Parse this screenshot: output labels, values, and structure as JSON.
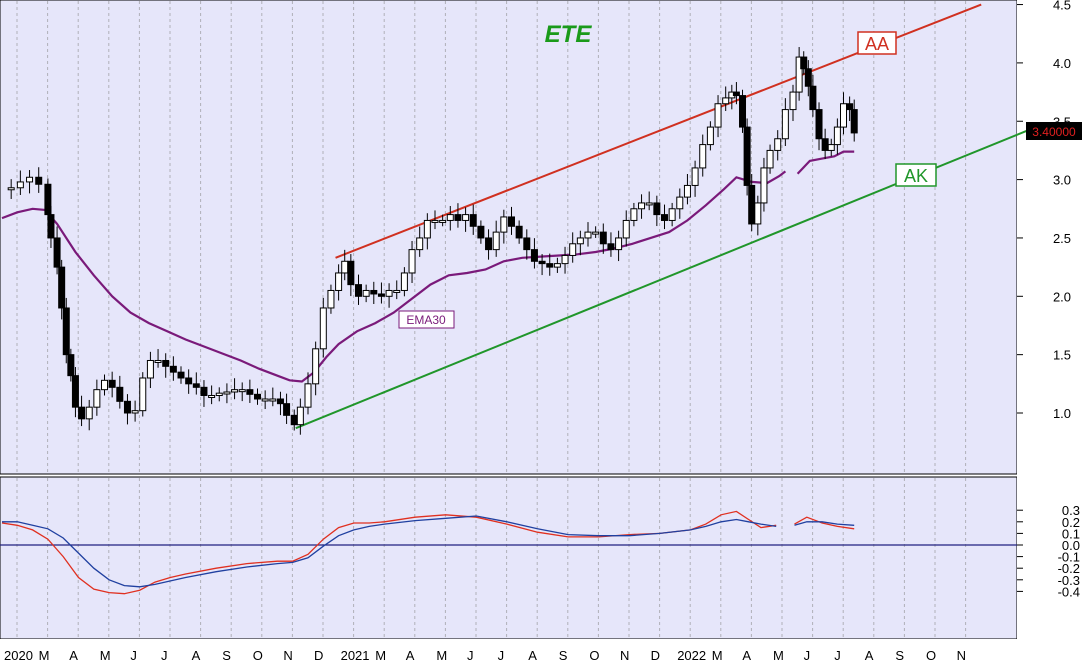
{
  "colors": {
    "panel_bg": "#e6e6fa",
    "grid": "#b0b0b8",
    "ema": "#7a1a7a",
    "upper_channel": "#d03020",
    "lower_channel": "#20962a",
    "macd_red": "#e03020",
    "macd_blue": "#2040a0",
    "zero_line": "#202080",
    "candle": "#000000",
    "price_tag_bg": "#000000",
    "price_tag_fg": "#e02020",
    "title": "#1a9a1a"
  },
  "chart_data": [
    {
      "type": "candlestick",
      "title": "ETE",
      "y_ticks": [
        "1.0",
        "1.5",
        "2.0",
        "2.5",
        "3.0",
        "3.5",
        "4.0",
        "4.5"
      ],
      "ylim": [
        0.5,
        4.5
      ],
      "x_ticks": [
        "2020",
        "M",
        "A",
        "M",
        "J",
        "J",
        "A",
        "S",
        "O",
        "N",
        "D",
        "2021",
        "M",
        "A",
        "M",
        "J",
        "J",
        "A",
        "S",
        "O",
        "N",
        "D",
        "2022",
        "M",
        "A",
        "M",
        "J",
        "J",
        "A",
        "S",
        "O",
        "N"
      ],
      "last_price_label": "3.40000",
      "last_price": 3.4,
      "annotations": [
        {
          "text": "AA",
          "color": "upper_channel"
        },
        {
          "text": "AK",
          "color": "lower_channel"
        },
        {
          "text": "EMA30",
          "color": "ema"
        }
      ],
      "trendlines": [
        {
          "name": "AA",
          "from": [
            10.9,
            2.33
          ],
          "to": [
            32.0,
            4.5
          ]
        },
        {
          "name": "AK",
          "from": [
            9.6,
            0.87
          ],
          "to": [
            33.6,
            3.43
          ]
        }
      ],
      "price_series": [
        [
          0.0,
          2.92
        ],
        [
          0.3,
          2.93
        ],
        [
          0.6,
          2.98
        ],
        [
          0.9,
          3.02
        ],
        [
          1.2,
          2.96
        ],
        [
          1.5,
          2.7
        ],
        [
          1.6,
          2.5
        ],
        [
          1.8,
          2.25
        ],
        [
          1.95,
          1.9
        ],
        [
          2.1,
          1.5
        ],
        [
          2.25,
          1.32
        ],
        [
          2.4,
          1.05
        ],
        [
          2.6,
          0.95
        ],
        [
          2.85,
          1.05
        ],
        [
          3.1,
          1.2
        ],
        [
          3.35,
          1.28
        ],
        [
          3.6,
          1.22
        ],
        [
          3.85,
          1.1
        ],
        [
          4.1,
          1.0
        ],
        [
          4.35,
          1.02
        ],
        [
          4.6,
          1.3
        ],
        [
          4.85,
          1.45
        ],
        [
          5.1,
          1.45
        ],
        [
          5.35,
          1.4
        ],
        [
          5.6,
          1.35
        ],
        [
          5.85,
          1.3
        ],
        [
          6.1,
          1.25
        ],
        [
          6.35,
          1.22
        ],
        [
          6.6,
          1.15
        ],
        [
          6.85,
          1.15
        ],
        [
          7.1,
          1.17
        ],
        [
          7.35,
          1.18
        ],
        [
          7.6,
          1.2
        ],
        [
          7.85,
          1.2
        ],
        [
          8.1,
          1.16
        ],
        [
          8.35,
          1.12
        ],
        [
          8.6,
          1.12
        ],
        [
          8.85,
          1.12
        ],
        [
          9.1,
          1.08
        ],
        [
          9.3,
          0.98
        ],
        [
          9.55,
          0.9
        ],
        [
          9.75,
          1.05
        ],
        [
          10.0,
          1.25
        ],
        [
          10.25,
          1.55
        ],
        [
          10.5,
          1.9
        ],
        [
          10.75,
          2.05
        ],
        [
          11.0,
          2.2
        ],
        [
          11.2,
          2.3
        ],
        [
          11.4,
          2.1
        ],
        [
          11.65,
          2.0
        ],
        [
          11.9,
          2.05
        ],
        [
          12.15,
          2.02
        ],
        [
          12.4,
          2.0
        ],
        [
          12.65,
          2.05
        ],
        [
          12.9,
          2.05
        ],
        [
          13.15,
          2.2
        ],
        [
          13.4,
          2.4
        ],
        [
          13.65,
          2.5
        ],
        [
          13.9,
          2.65
        ],
        [
          14.15,
          2.65
        ],
        [
          14.4,
          2.65
        ],
        [
          14.65,
          2.7
        ],
        [
          14.9,
          2.65
        ],
        [
          15.15,
          2.7
        ],
        [
          15.4,
          2.6
        ],
        [
          15.65,
          2.5
        ],
        [
          15.9,
          2.4
        ],
        [
          16.15,
          2.55
        ],
        [
          16.4,
          2.68
        ],
        [
          16.65,
          2.6
        ],
        [
          16.9,
          2.5
        ],
        [
          17.15,
          2.4
        ],
        [
          17.4,
          2.3
        ],
        [
          17.65,
          2.28
        ],
        [
          17.9,
          2.25
        ],
        [
          18.15,
          2.28
        ],
        [
          18.4,
          2.35
        ],
        [
          18.65,
          2.45
        ],
        [
          18.9,
          2.5
        ],
        [
          19.15,
          2.55
        ],
        [
          19.4,
          2.55
        ],
        [
          19.65,
          2.45
        ],
        [
          19.9,
          2.4
        ],
        [
          20.15,
          2.5
        ],
        [
          20.4,
          2.65
        ],
        [
          20.65,
          2.75
        ],
        [
          20.9,
          2.8
        ],
        [
          21.15,
          2.8
        ],
        [
          21.4,
          2.7
        ],
        [
          21.65,
          2.65
        ],
        [
          21.9,
          2.75
        ],
        [
          22.15,
          2.85
        ],
        [
          22.4,
          2.95
        ],
        [
          22.65,
          3.1
        ],
        [
          22.9,
          3.3
        ],
        [
          23.15,
          3.45
        ],
        [
          23.4,
          3.65
        ],
        [
          23.65,
          3.7
        ],
        [
          23.85,
          3.75
        ],
        [
          24.0,
          3.72
        ],
        [
          24.2,
          3.45
        ],
        [
          24.35,
          2.95
        ],
        [
          24.5,
          2.62
        ],
        [
          24.7,
          2.8
        ],
        [
          24.9,
          3.1
        ],
        [
          25.1,
          3.25
        ],
        [
          25.35,
          3.35
        ],
        [
          25.6,
          3.6
        ],
        [
          25.85,
          3.75
        ],
        [
          26.05,
          4.05
        ],
        [
          26.2,
          3.95
        ],
        [
          26.35,
          3.8
        ],
        [
          26.5,
          3.6
        ],
        [
          26.7,
          3.35
        ],
        [
          26.9,
          3.25
        ],
        [
          27.1,
          3.3
        ],
        [
          27.3,
          3.45
        ],
        [
          27.5,
          3.65
        ],
        [
          27.7,
          3.6
        ],
        [
          27.85,
          3.4
        ]
      ],
      "ema30": [
        [
          0.0,
          2.67
        ],
        [
          0.5,
          2.72
        ],
        [
          1.0,
          2.75
        ],
        [
          1.4,
          2.74
        ],
        [
          1.8,
          2.62
        ],
        [
          2.4,
          2.38
        ],
        [
          3.0,
          2.18
        ],
        [
          3.6,
          2.0
        ],
        [
          4.2,
          1.86
        ],
        [
          4.8,
          1.77
        ],
        [
          5.4,
          1.7
        ],
        [
          6.0,
          1.63
        ],
        [
          6.6,
          1.57
        ],
        [
          7.2,
          1.51
        ],
        [
          7.8,
          1.45
        ],
        [
          8.4,
          1.38
        ],
        [
          9.0,
          1.32
        ],
        [
          9.4,
          1.28
        ],
        [
          9.8,
          1.27
        ],
        [
          10.2,
          1.35
        ],
        [
          10.6,
          1.48
        ],
        [
          11.0,
          1.59
        ],
        [
          11.6,
          1.7
        ],
        [
          12.2,
          1.77
        ],
        [
          12.8,
          1.86
        ],
        [
          13.4,
          1.98
        ],
        [
          14.0,
          2.1
        ],
        [
          14.6,
          2.18
        ],
        [
          15.2,
          2.2
        ],
        [
          15.8,
          2.23
        ],
        [
          16.4,
          2.3
        ],
        [
          17.0,
          2.33
        ],
        [
          17.6,
          2.34
        ],
        [
          18.2,
          2.35
        ],
        [
          18.8,
          2.36
        ],
        [
          19.4,
          2.38
        ],
        [
          20.0,
          2.41
        ],
        [
          20.6,
          2.45
        ],
        [
          21.2,
          2.5
        ],
        [
          21.8,
          2.55
        ],
        [
          22.4,
          2.65
        ],
        [
          23.0,
          2.78
        ],
        [
          23.6,
          2.92
        ],
        [
          24.0,
          3.02
        ],
        [
          24.5,
          2.98
        ],
        [
          25.0,
          2.97
        ],
        [
          25.4,
          3.03
        ],
        [
          25.6,
          3.07
        ]
      ],
      "ema30_tail": [
        [
          26.0,
          3.05
        ],
        [
          26.4,
          3.16
        ],
        [
          26.8,
          3.18
        ],
        [
          27.2,
          3.2
        ],
        [
          27.5,
          3.24
        ],
        [
          27.85,
          3.24
        ]
      ],
      "volume_note": null
    },
    {
      "type": "line",
      "y_ticks": [
        "0.3",
        "0.2",
        "0.1",
        "0.0",
        "-0.1",
        "-0.2",
        "-0.3",
        "-0.4"
      ],
      "ylim": [
        -0.45,
        0.33
      ],
      "series": [
        {
          "color": "macd_red",
          "points": [
            [
              0.0,
              0.19
            ],
            [
              0.5,
              0.17
            ],
            [
              1.0,
              0.13
            ],
            [
              1.5,
              0.05
            ],
            [
              2.0,
              -0.1
            ],
            [
              2.5,
              -0.28
            ],
            [
              3.0,
              -0.38
            ],
            [
              3.5,
              -0.41
            ],
            [
              4.0,
              -0.42
            ],
            [
              4.5,
              -0.39
            ],
            [
              5.0,
              -0.32
            ],
            [
              5.5,
              -0.28
            ],
            [
              6.0,
              -0.25
            ],
            [
              7.0,
              -0.2
            ],
            [
              8.0,
              -0.16
            ],
            [
              9.0,
              -0.14
            ],
            [
              9.5,
              -0.14
            ],
            [
              10.0,
              -0.08
            ],
            [
              10.5,
              0.05
            ],
            [
              11.0,
              0.15
            ],
            [
              11.5,
              0.19
            ],
            [
              12.0,
              0.19
            ],
            [
              12.5,
              0.2
            ],
            [
              13.5,
              0.24
            ],
            [
              14.5,
              0.26
            ],
            [
              15.5,
              0.24
            ],
            [
              16.5,
              0.18
            ],
            [
              17.5,
              0.11
            ],
            [
              18.5,
              0.07
            ],
            [
              19.5,
              0.07
            ],
            [
              20.5,
              0.09
            ],
            [
              21.5,
              0.1
            ],
            [
              22.5,
              0.13
            ],
            [
              23.0,
              0.18
            ],
            [
              23.5,
              0.26
            ],
            [
              24.0,
              0.29
            ],
            [
              24.4,
              0.22
            ],
            [
              24.8,
              0.15
            ],
            [
              25.3,
              0.17
            ]
          ]
        },
        {
          "color": "macd_red",
          "points": [
            [
              25.9,
              0.18
            ],
            [
              26.3,
              0.24
            ],
            [
              26.8,
              0.19
            ],
            [
              27.3,
              0.16
            ],
            [
              27.85,
              0.14
            ]
          ]
        },
        {
          "color": "macd_blue",
          "points": [
            [
              0.0,
              0.2
            ],
            [
              0.5,
              0.2
            ],
            [
              1.0,
              0.17
            ],
            [
              1.5,
              0.14
            ],
            [
              2.0,
              0.06
            ],
            [
              2.5,
              -0.07
            ],
            [
              3.0,
              -0.2
            ],
            [
              3.5,
              -0.3
            ],
            [
              4.0,
              -0.35
            ],
            [
              4.5,
              -0.36
            ],
            [
              5.0,
              -0.34
            ],
            [
              6.0,
              -0.28
            ],
            [
              7.0,
              -0.23
            ],
            [
              8.0,
              -0.19
            ],
            [
              9.0,
              -0.16
            ],
            [
              9.5,
              -0.15
            ],
            [
              10.0,
              -0.11
            ],
            [
              10.5,
              -0.01
            ],
            [
              11.0,
              0.08
            ],
            [
              11.5,
              0.13
            ],
            [
              12.0,
              0.16
            ],
            [
              12.5,
              0.18
            ],
            [
              13.5,
              0.21
            ],
            [
              14.5,
              0.23
            ],
            [
              15.5,
              0.25
            ],
            [
              16.5,
              0.2
            ],
            [
              17.5,
              0.14
            ],
            [
              18.5,
              0.09
            ],
            [
              19.5,
              0.08
            ],
            [
              20.5,
              0.08
            ],
            [
              21.5,
              0.1
            ],
            [
              22.5,
              0.13
            ],
            [
              23.0,
              0.16
            ],
            [
              23.5,
              0.2
            ],
            [
              24.0,
              0.22
            ],
            [
              24.4,
              0.2
            ],
            [
              24.8,
              0.18
            ],
            [
              25.3,
              0.16
            ]
          ]
        },
        {
          "color": "macd_blue",
          "points": [
            [
              25.9,
              0.17
            ],
            [
              26.3,
              0.2
            ],
            [
              26.8,
              0.2
            ],
            [
              27.3,
              0.18
            ],
            [
              27.85,
              0.17
            ]
          ]
        }
      ],
      "zero_line": 0.0
    }
  ]
}
